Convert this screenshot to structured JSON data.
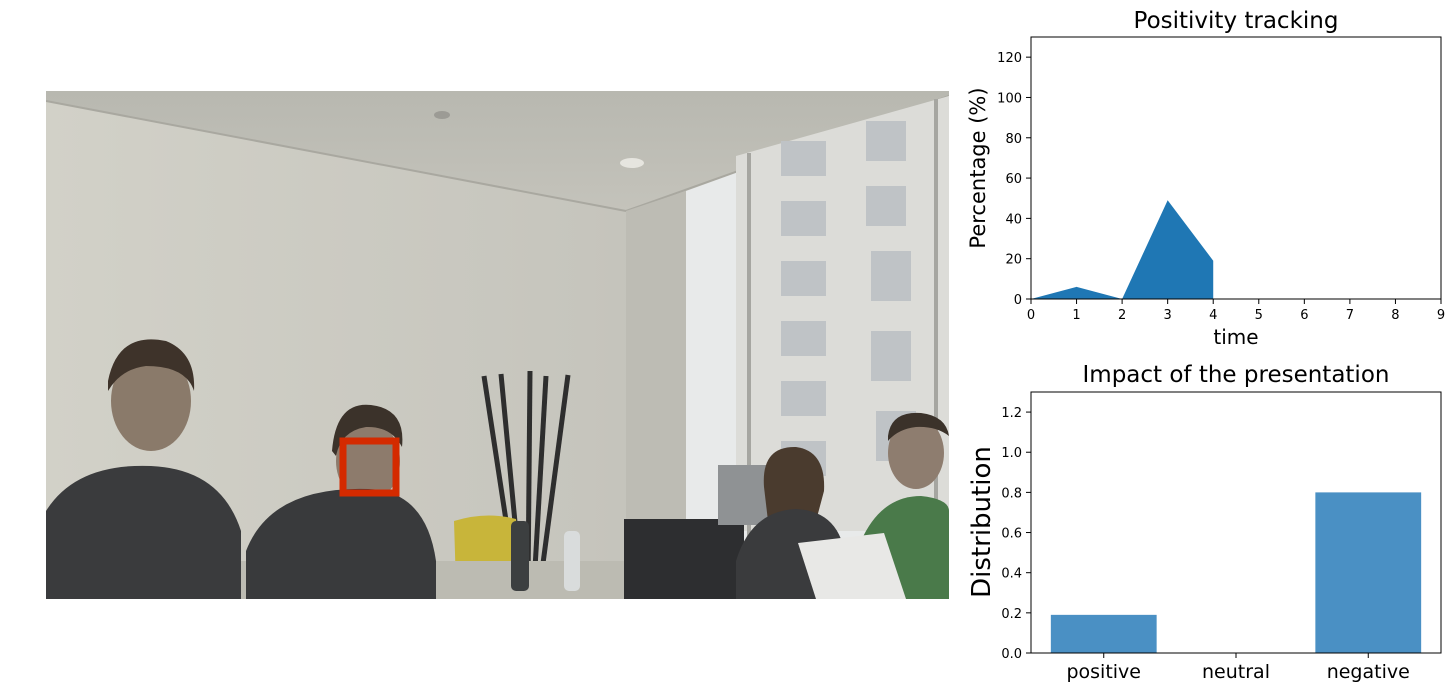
{
  "camera": {
    "scene": "webcam-meeting-room",
    "face_box_color": "#d42a00"
  },
  "chart_data": [
    {
      "type": "area",
      "title": "Positivity tracking",
      "xlabel": "time",
      "ylabel": "Percentage (%)",
      "x": [
        0,
        1,
        2,
        3,
        4
      ],
      "values": [
        0,
        6,
        0,
        49,
        19
      ],
      "xlim": [
        0,
        9
      ],
      "ylim": [
        0,
        130
      ],
      "xticks": [
        "0",
        "1",
        "2",
        "3",
        "4",
        "5",
        "6",
        "7",
        "8",
        "9"
      ],
      "yticks": [
        "0",
        "20",
        "40",
        "60",
        "80",
        "100",
        "120"
      ],
      "color": "#1f77b4",
      "grid": false
    },
    {
      "type": "bar",
      "title": "Impact of the presentation",
      "xlabel": "",
      "ylabel": "Distribution",
      "categories": [
        "positive",
        "neutral",
        "negative"
      ],
      "values": [
        0.19,
        0.0,
        0.8
      ],
      "ylim": [
        0,
        1.3
      ],
      "yticks": [
        "0.0",
        "0.2",
        "0.4",
        "0.6",
        "0.8",
        "1.0",
        "1.2"
      ],
      "color": "#4a90c4",
      "grid": false
    }
  ]
}
